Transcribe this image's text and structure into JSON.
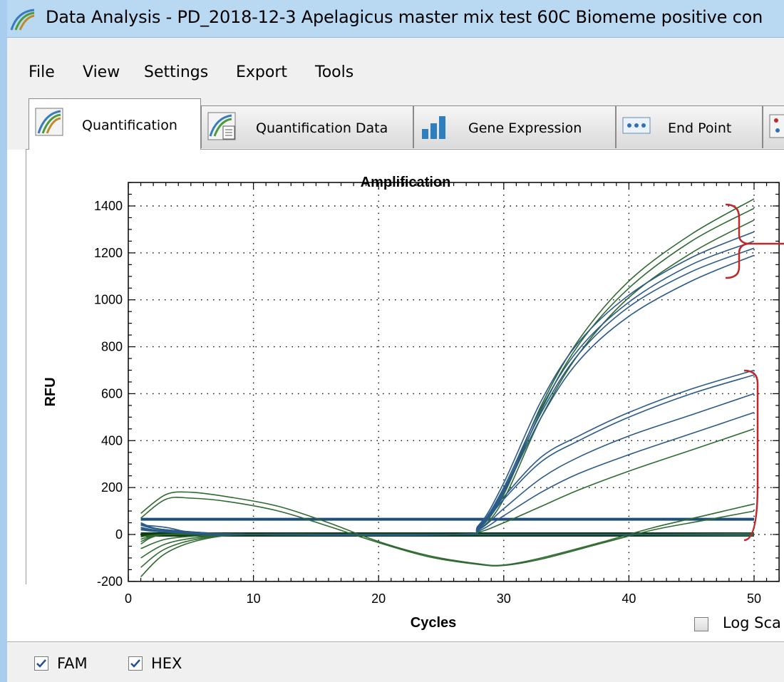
{
  "window": {
    "title": "Data Analysis - PD_2018-12-3 Apelagicus master mix test 60C Biomeme positive con"
  },
  "menu": [
    "File",
    "View",
    "Settings",
    "Export",
    "Tools"
  ],
  "tabs": [
    {
      "label": "Quantification",
      "icon": "amplification-curves-icon",
      "active": true
    },
    {
      "label": "Quantification Data",
      "icon": "quantification-data-icon",
      "active": false
    },
    {
      "label": "Gene Expression",
      "icon": "bar-chart-icon",
      "active": false
    },
    {
      "label": "End Point",
      "icon": "end-point-icon",
      "active": false
    }
  ],
  "log_scale": {
    "label": "Log Sca",
    "checked": false
  },
  "fluorophores": [
    {
      "label": "FAM",
      "checked": true
    },
    {
      "label": "HEX",
      "checked": true
    }
  ],
  "colors": {
    "blue_series": "#2a5a8a",
    "green_series": "#2f6a30",
    "blue_threshold": "#1f4e79",
    "green_threshold": "#0f3f10",
    "bracket": "#c0282a"
  },
  "chart_data": {
    "type": "line",
    "title": "Amplification",
    "xlabel": "Cycles",
    "ylabel": "RFU",
    "xlim": [
      0,
      52
    ],
    "ylim": [
      -200,
      1500
    ],
    "xticks": [
      0,
      10,
      20,
      30,
      40,
      50
    ],
    "yticks": [
      -200,
      0,
      200,
      400,
      600,
      800,
      1000,
      1200,
      1400
    ],
    "grid": true,
    "thresholds": [
      {
        "channel": "FAM",
        "value": 65
      },
      {
        "channel": "HEX",
        "value": 0
      }
    ],
    "series": [
      {
        "channel": "HEX",
        "points": [
          [
            1,
            -20
          ],
          [
            3,
            0
          ],
          [
            10,
            0
          ],
          [
            26,
            0
          ],
          [
            28,
            30
          ],
          [
            30,
            180
          ],
          [
            33,
            550
          ],
          [
            36,
            830
          ],
          [
            40,
            1080
          ],
          [
            45,
            1280
          ],
          [
            50,
            1430
          ]
        ]
      },
      {
        "channel": "HEX",
        "points": [
          [
            1,
            -30
          ],
          [
            3,
            0
          ],
          [
            10,
            0
          ],
          [
            26,
            0
          ],
          [
            28,
            25
          ],
          [
            30,
            170
          ],
          [
            33,
            530
          ],
          [
            36,
            810
          ],
          [
            40,
            1050
          ],
          [
            45,
            1250
          ],
          [
            50,
            1390
          ]
        ]
      },
      {
        "channel": "HEX",
        "points": [
          [
            1,
            -40
          ],
          [
            3,
            0
          ],
          [
            10,
            0
          ],
          [
            26,
            0
          ],
          [
            28,
            20
          ],
          [
            30,
            150
          ],
          [
            33,
            500
          ],
          [
            36,
            770
          ],
          [
            40,
            1010
          ],
          [
            45,
            1200
          ],
          [
            50,
            1340
          ]
        ]
      },
      {
        "channel": "FAM",
        "points": [
          [
            1,
            40
          ],
          [
            3,
            20
          ],
          [
            10,
            0
          ],
          [
            26,
            0
          ],
          [
            28,
            40
          ],
          [
            30,
            220
          ],
          [
            33,
            570
          ],
          [
            36,
            820
          ],
          [
            40,
            1020
          ],
          [
            45,
            1180
          ],
          [
            50,
            1290
          ]
        ]
      },
      {
        "channel": "FAM",
        "points": [
          [
            1,
            50
          ],
          [
            3,
            20
          ],
          [
            10,
            0
          ],
          [
            26,
            0
          ],
          [
            28,
            35
          ],
          [
            30,
            200
          ],
          [
            33,
            540
          ],
          [
            36,
            790
          ],
          [
            40,
            990
          ],
          [
            45,
            1150
          ],
          [
            50,
            1250
          ]
        ]
      },
      {
        "channel": "FAM",
        "points": [
          [
            1,
            45
          ],
          [
            3,
            20
          ],
          [
            10,
            0
          ],
          [
            26,
            0
          ],
          [
            28,
            30
          ],
          [
            30,
            190
          ],
          [
            33,
            520
          ],
          [
            36,
            770
          ],
          [
            40,
            970
          ],
          [
            45,
            1120
          ],
          [
            50,
            1220
          ]
        ]
      },
      {
        "channel": "FAM",
        "points": [
          [
            1,
            40
          ],
          [
            3,
            20
          ],
          [
            10,
            0
          ],
          [
            26,
            0
          ],
          [
            28,
            25
          ],
          [
            30,
            180
          ],
          [
            33,
            500
          ],
          [
            36,
            740
          ],
          [
            40,
            930
          ],
          [
            45,
            1080
          ],
          [
            50,
            1190
          ]
        ]
      },
      {
        "channel": "FAM",
        "points": [
          [
            1,
            30
          ],
          [
            3,
            15
          ],
          [
            10,
            0
          ],
          [
            26,
            0
          ],
          [
            28,
            30
          ],
          [
            30,
            160
          ],
          [
            33,
            330
          ],
          [
            36,
            420
          ],
          [
            40,
            520
          ],
          [
            45,
            620
          ],
          [
            50,
            700
          ]
        ]
      },
      {
        "channel": "FAM",
        "points": [
          [
            1,
            30
          ],
          [
            3,
            15
          ],
          [
            10,
            0
          ],
          [
            26,
            0
          ],
          [
            28,
            25
          ],
          [
            30,
            150
          ],
          [
            33,
            310
          ],
          [
            36,
            400
          ],
          [
            40,
            500
          ],
          [
            45,
            600
          ],
          [
            50,
            680
          ]
        ]
      },
      {
        "channel": "FAM",
        "points": [
          [
            1,
            25
          ],
          [
            3,
            15
          ],
          [
            10,
            0
          ],
          [
            26,
            0
          ],
          [
            28,
            20
          ],
          [
            30,
            110
          ],
          [
            33,
            240
          ],
          [
            36,
            330
          ],
          [
            40,
            420
          ],
          [
            45,
            510
          ],
          [
            50,
            600
          ]
        ]
      },
      {
        "channel": "FAM",
        "points": [
          [
            1,
            20
          ],
          [
            3,
            10
          ],
          [
            10,
            0
          ],
          [
            26,
            0
          ],
          [
            28,
            15
          ],
          [
            30,
            80
          ],
          [
            33,
            180
          ],
          [
            36,
            260
          ],
          [
            40,
            340
          ],
          [
            45,
            430
          ],
          [
            50,
            520
          ]
        ]
      },
      {
        "channel": "HEX",
        "points": [
          [
            1,
            -10
          ],
          [
            3,
            0
          ],
          [
            10,
            0
          ],
          [
            26,
            0
          ],
          [
            28,
            10
          ],
          [
            30,
            50
          ],
          [
            33,
            120
          ],
          [
            36,
            190
          ],
          [
            40,
            270
          ],
          [
            45,
            360
          ],
          [
            50,
            450
          ]
        ]
      },
      {
        "channel": "HEX",
        "points": [
          [
            1,
            90
          ],
          [
            3,
            170
          ],
          [
            5,
            180
          ],
          [
            8,
            160
          ],
          [
            12,
            120
          ],
          [
            16,
            50
          ],
          [
            20,
            -30
          ],
          [
            24,
            -90
          ],
          [
            28,
            -125
          ],
          [
            30,
            -130
          ],
          [
            33,
            -100
          ],
          [
            38,
            -30
          ],
          [
            42,
            30
          ],
          [
            46,
            80
          ],
          [
            50,
            130
          ]
        ]
      },
      {
        "channel": "HEX",
        "points": [
          [
            1,
            70
          ],
          [
            3,
            150
          ],
          [
            5,
            155
          ],
          [
            8,
            140
          ],
          [
            12,
            100
          ],
          [
            16,
            35
          ],
          [
            20,
            -35
          ],
          [
            24,
            -95
          ],
          [
            28,
            -128
          ],
          [
            30,
            -132
          ],
          [
            33,
            -105
          ],
          [
            38,
            -35
          ],
          [
            42,
            20
          ],
          [
            46,
            60
          ],
          [
            50,
            100
          ]
        ]
      },
      {
        "channel": "HEX",
        "points": [
          [
            1,
            -180
          ],
          [
            3,
            -80
          ],
          [
            6,
            -20
          ],
          [
            10,
            0
          ],
          [
            20,
            0
          ],
          [
            30,
            0
          ],
          [
            40,
            0
          ],
          [
            50,
            0
          ]
        ]
      },
      {
        "channel": "HEX",
        "points": [
          [
            1,
            -140
          ],
          [
            3,
            -60
          ],
          [
            6,
            -15
          ],
          [
            10,
            0
          ],
          [
            20,
            0
          ],
          [
            30,
            0
          ],
          [
            40,
            0
          ],
          [
            50,
            5
          ]
        ]
      },
      {
        "channel": "HEX",
        "points": [
          [
            1,
            -100
          ],
          [
            3,
            -40
          ],
          [
            6,
            -10
          ],
          [
            10,
            0
          ],
          [
            20,
            0
          ],
          [
            30,
            0
          ],
          [
            40,
            0
          ],
          [
            50,
            -5
          ]
        ]
      },
      {
        "channel": "HEX",
        "points": [
          [
            1,
            -60
          ],
          [
            3,
            -20
          ],
          [
            6,
            -5
          ],
          [
            10,
            0
          ],
          [
            20,
            0
          ],
          [
            30,
            0
          ],
          [
            40,
            0
          ],
          [
            50,
            0
          ]
        ]
      },
      {
        "channel": "FAM",
        "points": [
          [
            1,
            40
          ],
          [
            3,
            30
          ],
          [
            6,
            0
          ],
          [
            10,
            0
          ],
          [
            20,
            0
          ],
          [
            30,
            0
          ],
          [
            40,
            0
          ],
          [
            50,
            0
          ]
        ]
      },
      {
        "channel": "FAM",
        "points": [
          [
            1,
            20
          ],
          [
            3,
            15
          ],
          [
            6,
            0
          ],
          [
            10,
            0
          ],
          [
            20,
            0
          ],
          [
            30,
            0
          ],
          [
            40,
            0
          ],
          [
            50,
            0
          ]
        ]
      }
    ]
  }
}
